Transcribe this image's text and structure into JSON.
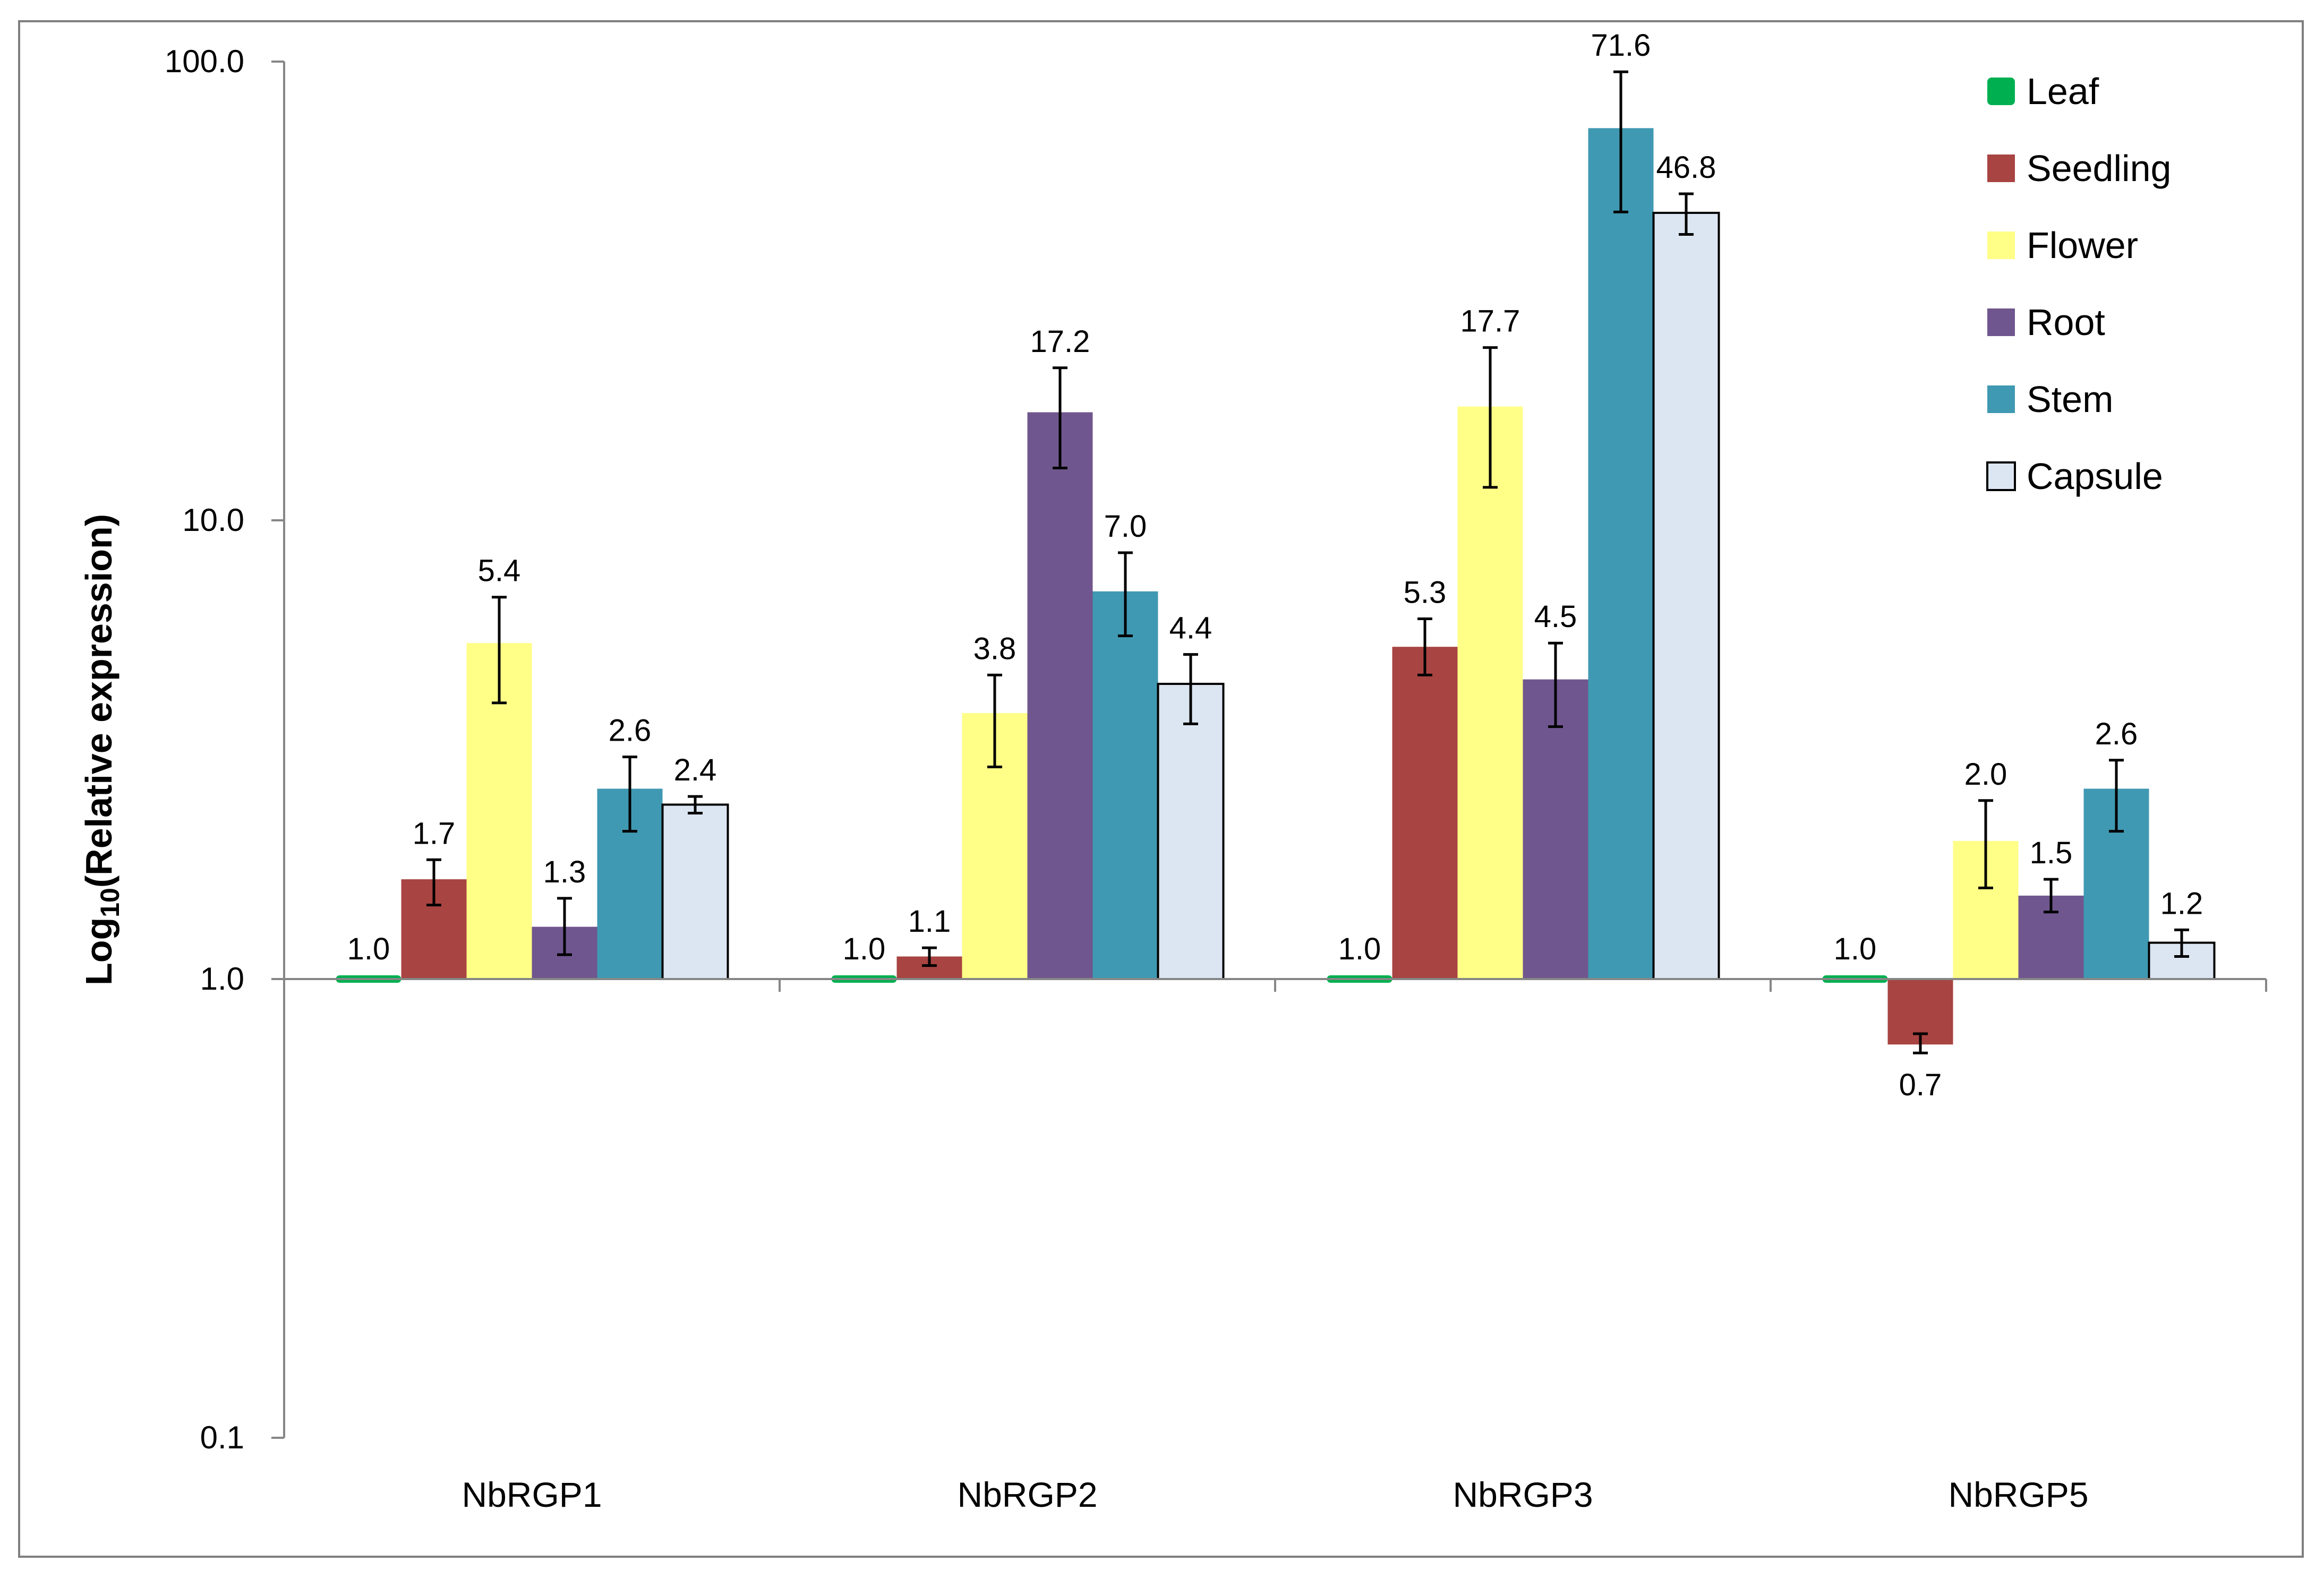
{
  "chart_data": {
    "type": "bar",
    "title": "",
    "xlabel": "",
    "ylabel": "Log10(Relative expression)",
    "ylabel_parts": {
      "prefix": "Log",
      "sub": "10",
      "suffix": "(Relative expression)"
    },
    "yscale": "log",
    "ylim": [
      0.1,
      100
    ],
    "y_ticks": [
      {
        "value": 100,
        "label": "100.0"
      },
      {
        "value": 10,
        "label": "10.0"
      },
      {
        "value": 1,
        "label": "1.0"
      },
      {
        "value": 0.1,
        "label": "0.1"
      }
    ],
    "baseline": 1.0,
    "legend_position": "top-right",
    "categories": [
      "NbRGP1",
      "NbRGP2",
      "NbRGP3",
      "NbRGP5"
    ],
    "series": [
      {
        "name": "Leaf",
        "color": "#00b050",
        "border": "#00b050",
        "values": [
          1.0,
          1.0,
          1.0,
          1.0
        ],
        "labels": [
          "1.0",
          "1.0",
          "1.0",
          "1.0"
        ],
        "err_low": [
          1.0,
          1.0,
          1.0,
          1.0
        ],
        "err_high": [
          1.0,
          1.0,
          1.0,
          1.0
        ]
      },
      {
        "name": "Seedling",
        "color": "#a84442",
        "border": "#a84442",
        "values": [
          1.65,
          1.12,
          5.3,
          0.72
        ],
        "labels": [
          "1.7",
          "1.1",
          "5.3",
          "0.7"
        ],
        "err_low": [
          1.45,
          1.07,
          4.6,
          0.69
        ],
        "err_high": [
          1.82,
          1.17,
          6.1,
          0.76
        ]
      },
      {
        "name": "Flower",
        "color": "#ffff88",
        "border": "#ffff88",
        "values": [
          5.4,
          3.8,
          17.7,
          2.0
        ],
        "labels": [
          "5.4",
          "3.8",
          "17.7",
          "2.0"
        ],
        "err_low": [
          4.0,
          2.9,
          11.8,
          1.58
        ],
        "err_high": [
          6.8,
          4.6,
          23.8,
          2.45
        ]
      },
      {
        "name": "Root",
        "color": "#70568e",
        "border": "#70568e",
        "values": [
          1.3,
          17.2,
          4.5,
          1.52
        ],
        "labels": [
          "1.3",
          "17.2",
          "4.5",
          "1.5"
        ],
        "err_low": [
          1.13,
          13.0,
          3.55,
          1.4
        ],
        "err_high": [
          1.5,
          21.5,
          5.4,
          1.65
        ]
      },
      {
        "name": "Stem",
        "color": "#4099b2",
        "border": "#4099b2",
        "values": [
          2.6,
          7.0,
          71.6,
          2.6
        ],
        "labels": [
          "2.6",
          "7.0",
          "71.6",
          "2.6"
        ],
        "err_low": [
          2.1,
          5.6,
          47.0,
          2.1
        ],
        "err_high": [
          3.05,
          8.5,
          95.0,
          3.0
        ]
      },
      {
        "name": "Capsule",
        "color": "#dce6f2",
        "border": "#000000",
        "values": [
          2.4,
          4.4,
          46.8,
          1.2
        ],
        "labels": [
          "2.4",
          "4.4",
          "46.8",
          "1.2"
        ],
        "err_low": [
          2.3,
          3.6,
          42.0,
          1.12
        ],
        "err_high": [
          2.5,
          5.1,
          51.5,
          1.28
        ]
      }
    ]
  }
}
